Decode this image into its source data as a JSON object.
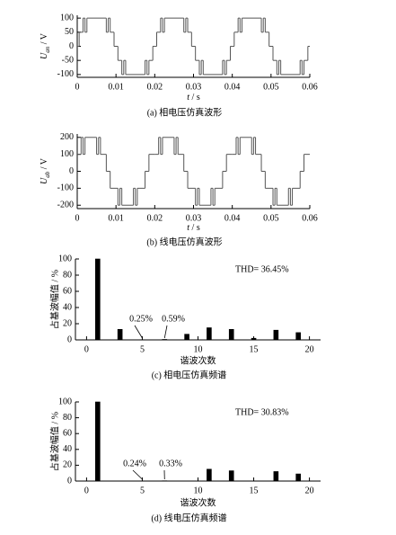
{
  "chart_data": [
    {
      "type": "line",
      "step": "post",
      "ylabel": {
        "symbol": "U",
        "subscript": "an",
        "unit": " / V"
      },
      "xlabel": {
        "symbol": "t",
        "unit": " / s"
      },
      "caption": "(a)  相电压仿真波形",
      "xlim": [
        0,
        0.06
      ],
      "xticks": [
        0,
        0.01,
        0.02,
        0.03,
        0.04,
        0.05,
        0.06
      ],
      "ylim": [
        -110,
        110
      ],
      "yticks": [
        -100,
        -50,
        0,
        50,
        100
      ],
      "color": "#555555",
      "x": [
        0,
        0.0005,
        0.0015,
        0.002,
        0.0025,
        0.0075,
        0.008,
        0.0085,
        0.0095,
        0.0105,
        0.0115,
        0.012,
        0.0125,
        0.0175,
        0.018,
        0.0185,
        0.0195,
        0.02,
        0.0205,
        0.0215,
        0.022,
        0.0225,
        0.0275,
        0.028,
        0.0285,
        0.0295,
        0.0305,
        0.0315,
        0.032,
        0.0325,
        0.0375,
        0.038,
        0.0385,
        0.0395,
        0.04,
        0.0405,
        0.0415,
        0.042,
        0.0425,
        0.0475,
        0.048,
        0.0485,
        0.0495,
        0.0505,
        0.0515,
        0.052,
        0.0525,
        0.0575,
        0.058,
        0.0585,
        0.0595
      ],
      "values": [
        0,
        50,
        100,
        50,
        100,
        50,
        100,
        50,
        0,
        -50,
        -100,
        -50,
        -100,
        -50,
        -100,
        -50,
        0,
        0,
        50,
        100,
        50,
        100,
        50,
        100,
        50,
        0,
        -50,
        -100,
        -50,
        -100,
        -50,
        -100,
        -50,
        0,
        0,
        50,
        100,
        50,
        100,
        50,
        100,
        50,
        0,
        -50,
        -100,
        -50,
        -100,
        -50,
        -100,
        -50,
        0
      ]
    },
    {
      "type": "line",
      "step": "post",
      "ylabel": {
        "symbol": "U",
        "subscript": "ab",
        "unit": " / V"
      },
      "xlabel": {
        "symbol": "t",
        "unit": " / s"
      },
      "caption": "(b)  线电压仿真波形",
      "xlim": [
        0,
        0.06
      ],
      "xticks": [
        0,
        0.01,
        0.02,
        0.03,
        0.04,
        0.05,
        0.06
      ],
      "ylim": [
        -220,
        220
      ],
      "yticks": [
        -200,
        -100,
        0,
        100,
        200
      ],
      "color": "#555555",
      "x": [
        0,
        0.001,
        0.0015,
        0.002,
        0.005,
        0.0055,
        0.006,
        0.0075,
        0.0085,
        0.0105,
        0.011,
        0.0115,
        0.0145,
        0.015,
        0.0155,
        0.0175,
        0.0185,
        0.02,
        0.021,
        0.0215,
        0.022,
        0.025,
        0.0255,
        0.026,
        0.0275,
        0.0285,
        0.0305,
        0.031,
        0.0315,
        0.0345,
        0.035,
        0.0355,
        0.0375,
        0.0385,
        0.04,
        0.041,
        0.0415,
        0.042,
        0.045,
        0.0455,
        0.046,
        0.0475,
        0.0485,
        0.0505,
        0.051,
        0.0515,
        0.0545,
        0.055,
        0.0555,
        0.0575,
        0.0585
      ],
      "values": [
        100,
        200,
        100,
        200,
        100,
        200,
        100,
        0,
        -100,
        -200,
        -100,
        -200,
        -100,
        -200,
        -100,
        0,
        100,
        100,
        200,
        100,
        200,
        100,
        200,
        100,
        0,
        -100,
        -200,
        -100,
        -200,
        -100,
        -200,
        -100,
        0,
        100,
        100,
        200,
        100,
        200,
        100,
        200,
        100,
        0,
        -100,
        -200,
        -100,
        -200,
        -100,
        -200,
        -100,
        0,
        100
      ]
    },
    {
      "type": "bar",
      "ylabel": "占基波幅值 / %",
      "xlabel": "谐波次数",
      "caption": "(c)  相电压仿真频谱",
      "xlim": [
        -1,
        21
      ],
      "xticks": [
        0,
        5,
        10,
        15,
        20
      ],
      "ylim": [
        0,
        100
      ],
      "yticks": [
        0,
        20,
        40,
        60,
        80,
        100
      ],
      "color": "#000000",
      "x": [
        1,
        3,
        5,
        7,
        9,
        11,
        13,
        15,
        17,
        19
      ],
      "values": [
        100,
        13,
        0.25,
        0.59,
        7,
        15,
        13,
        2,
        12,
        9
      ],
      "annotations": [
        "THD= 36.45%",
        "0.25%",
        "0.59%"
      ]
    },
    {
      "type": "bar",
      "ylabel": "占基波幅值 / %",
      "xlabel": "谐波次数",
      "caption": "(d)  线电压仿真频谱",
      "xlim": [
        -1,
        21
      ],
      "xticks": [
        0,
        5,
        10,
        15,
        20
      ],
      "ylim": [
        0,
        100
      ],
      "yticks": [
        0,
        20,
        40,
        60,
        80,
        100
      ],
      "color": "#000000",
      "x": [
        1,
        3,
        5,
        7,
        9,
        11,
        13,
        15,
        17,
        19
      ],
      "values": [
        100,
        0,
        0.24,
        0.33,
        0,
        15,
        13,
        0,
        12,
        9
      ],
      "annotations": [
        "THD= 30.83%",
        "0.24%",
        "0.33%"
      ]
    }
  ]
}
